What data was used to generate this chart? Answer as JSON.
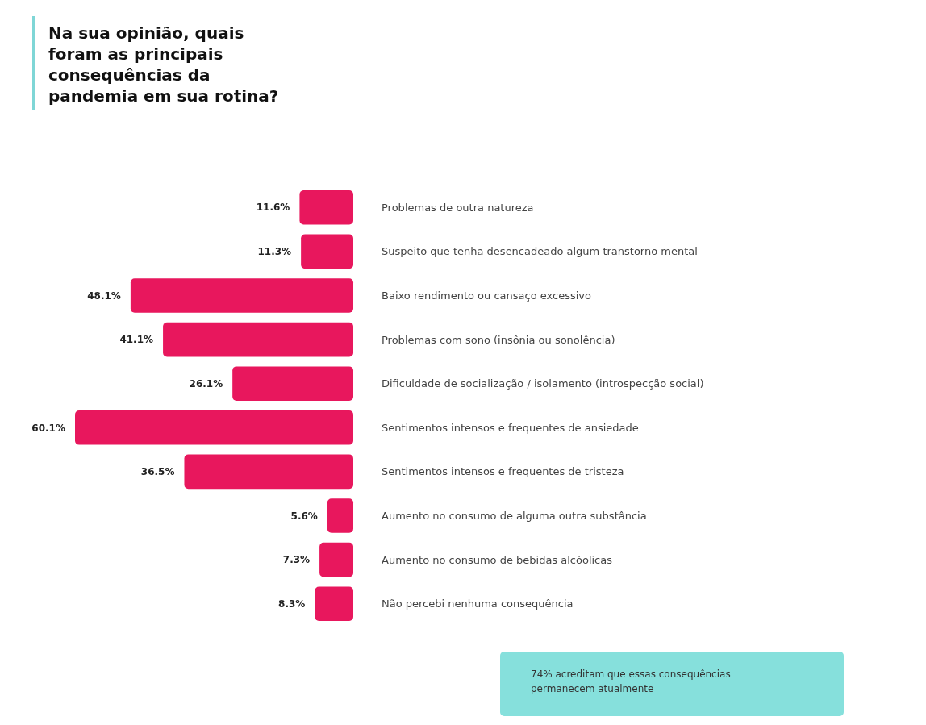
{
  "chart_data": {
    "type": "bar",
    "orientation": "horizontal",
    "title": "Na sua opinião, quais foram as principais consequências da pandemia em sua rotina?",
    "categories": [
      "Problemas de outra natureza",
      "Suspeito que tenha desencadeado algum transtorno mental",
      "Baixo rendimento ou cansaço excessivo",
      "Problemas com sono (insônia ou sonolência)",
      "Dificuldade de socialização / isolamento (introspecção social)",
      "Sentimentos intensos e frequentes de ansiedade",
      "Sentimentos intensos e frequentes de tristeza",
      "Aumento no consumo de alguma outra substância",
      "Aumento no consumo de bebidas alcóolicas",
      "Não percebi nenhuma consequência"
    ],
    "values": [
      11.6,
      11.3,
      48.1,
      41.1,
      26.1,
      60.1,
      36.5,
      5.6,
      7.3,
      8.3
    ],
    "value_labels": [
      "11.6%",
      "11.3%",
      "48.1%",
      "41.1%",
      "26.1%",
      "60.1%",
      "36.5%",
      "5.6%",
      "7.3%",
      "8.3%"
    ],
    "color": "#e8175d",
    "annotations": [
      "74% acreditam que essas consequências permanecem atualmente"
    ]
  }
}
